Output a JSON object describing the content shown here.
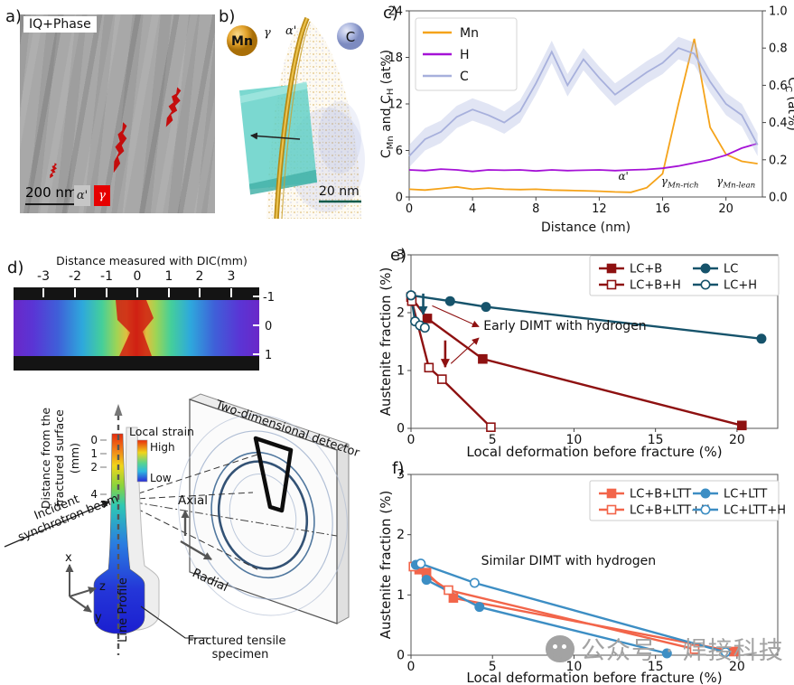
{
  "panel_a": {
    "label": "a)",
    "tag": "IQ+Phase",
    "scale_bar": "200 nm",
    "phase_legend": [
      {
        "name": "alpha-prime-martensite",
        "symbol": "α'",
        "color": "#c6c6c6"
      },
      {
        "name": "gamma-austenite",
        "symbol": "γ",
        "color": "#e60000"
      }
    ]
  },
  "panel_b": {
    "label": "b)",
    "mn_label": "Mn",
    "c_label": "C",
    "gamma_label": "γ",
    "alpha_label": "α'",
    "scale_bar": "20 nm"
  },
  "panel_c_label": "c)",
  "panel_d": {
    "label": "d)",
    "ruler_title": "Distance measured with DIC(mm)",
    "ruler_ticks": [
      "-3",
      "-2",
      "-1",
      "0",
      "1",
      "2",
      "3"
    ],
    "side_ticks": [
      "-1",
      "0",
      "1"
    ],
    "schematic": {
      "distance_axis_label_1": "Distance from the",
      "distance_axis_label_2": "fractured surface",
      "distance_axis_label_3": "(mm)",
      "distance_ticks": [
        "0",
        "1",
        "2",
        "4"
      ],
      "local_strain_label": "Local strain",
      "high_label": "High",
      "low_label": "Low",
      "beam_label_1": "Incident",
      "beam_label_2": "synchrotron beam",
      "axis_x": "x",
      "axis_y": "y",
      "axis_z": "z",
      "line_profile_label": "Line Profile",
      "axial_label": "Axial",
      "radial_label": "Radial",
      "detector_label": "Two-dimensional detector",
      "specimen_label_1": "Fractured tensile",
      "specimen_label_2": "specimen"
    }
  },
  "panel_e_label": "e)",
  "panel_f_label": "f)",
  "watermark": {
    "text": "公众号 · 焊接科技"
  },
  "chart_data": [
    {
      "id": "c",
      "type": "line",
      "xlabel": "Distance (nm)",
      "ylabel_left": "C_{Mn} and C_{H} (at%)",
      "ylabel_right": "C_{C} (at%)",
      "xlim": [
        0,
        22.3
      ],
      "ylim_left": [
        0,
        24
      ],
      "ylim_right": [
        0,
        1.0
      ],
      "xticks": [
        0,
        4,
        8,
        12,
        16,
        20
      ],
      "yticks_left": [
        0,
        6,
        12,
        18,
        24
      ],
      "yticks_right": [
        0.0,
        0.2,
        0.4,
        0.6,
        0.8,
        1.0
      ],
      "legend_pos": "top-left",
      "x": [
        0,
        1,
        2,
        3,
        4,
        5,
        6,
        7,
        8,
        9,
        10,
        11,
        12,
        13,
        14,
        15,
        16,
        17,
        18,
        19,
        20,
        21,
        22
      ],
      "series": [
        {
          "name": "Mn",
          "color": "#f5a31a",
          "axis": "left",
          "values": [
            1.0,
            0.9,
            1.1,
            1.3,
            1.0,
            1.15,
            1.0,
            0.95,
            1.0,
            0.9,
            0.85,
            0.8,
            0.75,
            0.65,
            0.6,
            1.2,
            3.0,
            12.0,
            20.4,
            9.0,
            5.5,
            4.6,
            4.3
          ]
        },
        {
          "name": "H",
          "color": "#a512d6",
          "axis": "left",
          "values": [
            3.5,
            3.4,
            3.6,
            3.5,
            3.3,
            3.5,
            3.45,
            3.5,
            3.35,
            3.5,
            3.4,
            3.45,
            3.5,
            3.4,
            3.5,
            3.55,
            3.7,
            4.0,
            4.4,
            4.8,
            5.4,
            6.3,
            6.9
          ]
        },
        {
          "name": "C",
          "color": "#a7b0dc",
          "axis": "right",
          "band": 0.06,
          "band_color": "#aab4e0",
          "values": [
            0.22,
            0.31,
            0.35,
            0.43,
            0.47,
            0.44,
            0.4,
            0.46,
            0.61,
            0.78,
            0.6,
            0.74,
            0.64,
            0.55,
            0.61,
            0.67,
            0.72,
            0.8,
            0.77,
            0.62,
            0.5,
            0.44,
            0.28
          ]
        }
      ],
      "annotations": [
        {
          "text": "α'",
          "x": 13.2,
          "y": 2.2
        },
        {
          "text": "γ_{Mn-rich}",
          "x": 15.9,
          "y": 1.55
        },
        {
          "text": "γ_{Mn-lean}",
          "x": 19.4,
          "y": 1.55
        }
      ]
    },
    {
      "id": "e",
      "type": "scatter-line",
      "xlabel": "Local deformation before fracture (%)",
      "ylabel": "Austenite fraction (%)",
      "xlim": [
        0,
        22.5
      ],
      "ylim": [
        0,
        3
      ],
      "xticks": [
        0,
        5,
        10,
        15,
        20
      ],
      "yticks": [
        0,
        1,
        2,
        3
      ],
      "series": [
        {
          "name": "LC+B",
          "color": "#8e1111",
          "marker": "square",
          "filled": true,
          "points": [
            [
              0,
              2.27
            ],
            [
              1.0,
              1.9
            ],
            [
              4.4,
              1.2
            ],
            [
              20.3,
              0.05
            ]
          ]
        },
        {
          "name": "LC+B+H",
          "color": "#8e1111",
          "marker": "square",
          "filled": false,
          "points": [
            [
              0.05,
              2.2
            ],
            [
              1.1,
              1.05
            ],
            [
              1.9,
              0.85
            ],
            [
              4.9,
              0.02
            ]
          ]
        },
        {
          "name": "LC",
          "color": "#16536b",
          "marker": "circle",
          "filled": true,
          "points": [
            [
              0,
              2.3
            ],
            [
              2.4,
              2.2
            ],
            [
              4.6,
              2.1
            ],
            [
              21.5,
              1.55
            ]
          ]
        },
        {
          "name": "LC+H",
          "color": "#16536b",
          "marker": "circle",
          "filled": false,
          "points": [
            [
              0,
              2.3
            ],
            [
              0.25,
              1.85
            ],
            [
              0.55,
              1.78
            ],
            [
              0.85,
              1.74
            ]
          ]
        }
      ],
      "legend_rows": [
        [
          "LC+B",
          "LC"
        ],
        [
          "LC+B+H",
          "LC+H"
        ]
      ],
      "annotation": {
        "text": "Early DIMT with hydrogen",
        "x": 4.45,
        "y": 1.7
      },
      "arrows": [
        {
          "style": "thick",
          "color": "#16536b",
          "from": [
            0.75,
            2.33
          ],
          "to": [
            0.75,
            1.97
          ]
        },
        {
          "style": "thick",
          "color": "#8e1111",
          "from": [
            2.1,
            1.52
          ],
          "to": [
            2.1,
            1.06
          ]
        },
        {
          "style": "thin",
          "color": "#8e1111",
          "from": [
            1.3,
            2.12
          ],
          "to": [
            4.15,
            1.76
          ]
        },
        {
          "style": "thin",
          "color": "#8e1111",
          "from": [
            2.45,
            1.12
          ],
          "to": [
            4.15,
            1.56
          ]
        }
      ]
    },
    {
      "id": "f",
      "type": "scatter-line",
      "xlabel": "Local deformation before fracture (%)",
      "ylabel": "Austenite fraction (%)",
      "xlim": [
        0,
        22.5
      ],
      "ylim": [
        0,
        3
      ],
      "xticks": [
        0,
        5,
        10,
        15,
        20
      ],
      "yticks": [
        0,
        1,
        2,
        3
      ],
      "series": [
        {
          "name": "LC+B+LTT",
          "color": "#f2654a",
          "marker": "square",
          "filled": true,
          "points": [
            [
              0.5,
              1.42
            ],
            [
              0.95,
              1.37
            ],
            [
              2.6,
              0.95
            ],
            [
              19.8,
              0.06
            ]
          ]
        },
        {
          "name": "LC+B+LTT+H",
          "color": "#f2654a",
          "marker": "square",
          "filled": false,
          "points": [
            [
              0.15,
              1.47
            ],
            [
              2.3,
              1.08
            ],
            [
              17.4,
              0.1
            ]
          ]
        },
        {
          "name": "LC+LTT",
          "color": "#3d8ec4",
          "marker": "circle",
          "filled": true,
          "points": [
            [
              0.3,
              1.5
            ],
            [
              0.95,
              1.25
            ],
            [
              4.2,
              0.8
            ],
            [
              15.7,
              0.03
            ]
          ]
        },
        {
          "name": "LC+LTT+H",
          "color": "#3d8ec4",
          "marker": "circle",
          "filled": false,
          "points": [
            [
              0.6,
              1.52
            ],
            [
              3.9,
              1.2
            ],
            [
              19.3,
              0.05
            ]
          ]
        }
      ],
      "legend_rows": [
        [
          "LC+B+LTT",
          "LC+LTT"
        ],
        [
          "LC+B+LTT+H",
          "LC+LTT+H"
        ]
      ],
      "annotation": {
        "text": "Similar DIMT with hydrogen",
        "x": 4.3,
        "y": 1.5
      }
    }
  ]
}
